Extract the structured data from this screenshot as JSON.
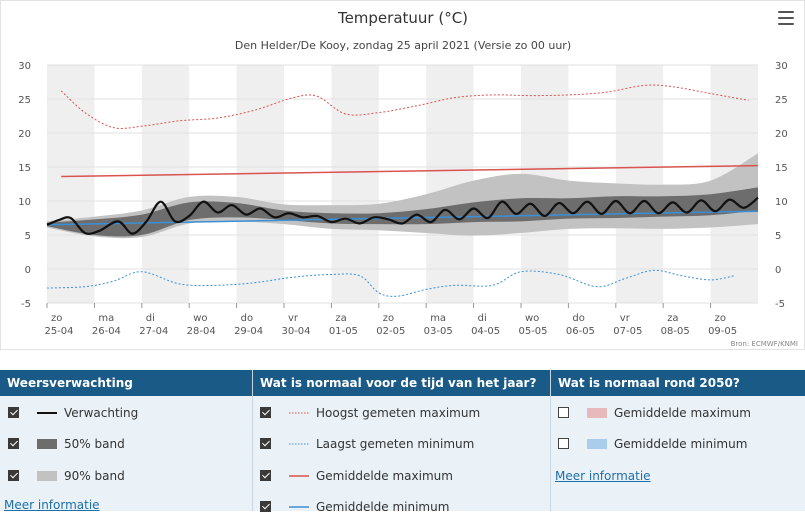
{
  "chart_data": {
    "type": "line",
    "title": "Temperatuur (°C)",
    "subtitle": "Den Helder/De Kooy, zondag 25 april 2021 (Versie zo 00 uur)",
    "source": "Bron: ECMWF/KNMI",
    "ylim": [
      -5,
      30
    ],
    "yticks": [
      "30",
      "25",
      "20",
      "15",
      "10",
      "5",
      "0",
      "-5"
    ],
    "ytick_values": [
      30,
      25,
      20,
      15,
      10,
      5,
      0,
      -5
    ],
    "xlim": [
      0,
      15
    ],
    "categories": [
      {
        "day": "zo",
        "date": "25-04"
      },
      {
        "day": "ma",
        "date": "26-04"
      },
      {
        "day": "di",
        "date": "27-04"
      },
      {
        "day": "wo",
        "date": "28-04"
      },
      {
        "day": "do",
        "date": "29-04"
      },
      {
        "day": "vr",
        "date": "30-04"
      },
      {
        "day": "za",
        "date": "01-05"
      },
      {
        "day": "zo",
        "date": "02-05"
      },
      {
        "day": "ma",
        "date": "03-05"
      },
      {
        "day": "di",
        "date": "04-05"
      },
      {
        "day": "wo",
        "date": "05-05"
      },
      {
        "day": "do",
        "date": "06-05"
      },
      {
        "day": "vr",
        "date": "07-05"
      },
      {
        "day": "za",
        "date": "08-05"
      },
      {
        "day": "zo",
        "date": "09-05"
      }
    ],
    "series": [
      {
        "name": "Hoogst gemeten maximum",
        "style": "dotted",
        "color": "#d9534f",
        "x": [
          0.3,
          0.8,
          1.4,
          2.0,
          2.8,
          3.6,
          4.4,
          5.2,
          5.7,
          6.3,
          7.0,
          7.8,
          8.6,
          9.4,
          10.2,
          11.0,
          11.8,
          12.6,
          13.2,
          14.0,
          14.8
        ],
        "y": [
          26.2,
          23.0,
          20.8,
          21.0,
          21.8,
          22.2,
          23.4,
          25.2,
          25.4,
          22.8,
          23.0,
          24.0,
          25.2,
          25.6,
          25.5,
          25.6,
          26.0,
          27.0,
          26.8,
          25.8,
          24.8
        ]
      },
      {
        "name": "Laagst gemeten minimum",
        "style": "dotted",
        "color": "#3a8fd6",
        "x": [
          0.0,
          0.8,
          1.4,
          2.0,
          2.8,
          3.6,
          4.4,
          5.2,
          6.0,
          6.6,
          7.0,
          7.4,
          8.0,
          8.6,
          9.4,
          10.0,
          10.8,
          11.6,
          12.2,
          12.8,
          13.4,
          14.0,
          14.5
        ],
        "y": [
          -2.8,
          -2.6,
          -1.8,
          -0.4,
          -2.2,
          -2.4,
          -2.0,
          -1.2,
          -0.8,
          -1.0,
          -3.5,
          -4.0,
          -3.0,
          -2.4,
          -2.4,
          -0.4,
          -0.8,
          -2.6,
          -1.4,
          -0.2,
          -1.0,
          -1.6,
          -1.0
        ]
      },
      {
        "name": "Gemiddelde maximum",
        "style": "solid",
        "color": "#d9534f",
        "x": [
          0.3,
          15.0
        ],
        "y": [
          13.6,
          15.2
        ]
      },
      {
        "name": "Gemiddelde minimum",
        "style": "solid",
        "color": "#3a8fd6",
        "x": [
          0.0,
          15.0
        ],
        "y": [
          6.5,
          8.5
        ]
      },
      {
        "name": "Verwachting",
        "style": "solid-bold",
        "color": "#111111",
        "x": [
          0.0,
          0.25,
          0.5,
          0.8,
          1.1,
          1.5,
          1.8,
          2.1,
          2.4,
          2.7,
          3.0,
          3.3,
          3.6,
          3.9,
          4.2,
          4.5,
          4.8,
          5.1,
          5.4,
          5.7,
          6.0,
          6.3,
          6.6,
          6.9,
          7.2,
          7.5,
          7.8,
          8.1,
          8.4,
          8.7,
          9.0,
          9.3,
          9.6,
          9.9,
          10.2,
          10.5,
          10.8,
          11.1,
          11.4,
          11.7,
          12.0,
          12.3,
          12.6,
          12.9,
          13.2,
          13.5,
          13.8,
          14.1,
          14.4,
          14.7,
          15.0
        ],
        "y": [
          6.5,
          7.2,
          7.5,
          5.3,
          5.6,
          7.0,
          5.2,
          7.0,
          9.9,
          7.0,
          7.8,
          9.9,
          8.3,
          9.4,
          8.0,
          8.9,
          7.6,
          8.2,
          7.6,
          7.8,
          6.9,
          7.4,
          6.7,
          7.6,
          7.3,
          6.7,
          8.0,
          6.9,
          8.7,
          7.3,
          8.9,
          7.5,
          9.9,
          8.1,
          9.6,
          7.8,
          9.7,
          8.2,
          9.9,
          8.1,
          10.0,
          8.2,
          10.0,
          8.2,
          9.8,
          8.3,
          10.1,
          8.5,
          10.2,
          9.0,
          10.5
        ]
      },
      {
        "name": "50% band",
        "type": "band",
        "color": "#6d6d6d",
        "x": [
          0.0,
          1.0,
          2.0,
          3.0,
          4.0,
          5.0,
          6.0,
          7.0,
          8.0,
          9.0,
          10.0,
          11.0,
          12.0,
          13.0,
          14.0,
          15.0
        ],
        "lower": [
          6.3,
          5.0,
          5.0,
          7.2,
          7.6,
          7.2,
          6.7,
          6.6,
          6.6,
          6.9,
          7.0,
          7.4,
          7.5,
          7.7,
          7.9,
          8.6
        ],
        "upper": [
          6.8,
          7.3,
          8.0,
          9.8,
          9.7,
          8.6,
          8.2,
          8.2,
          8.8,
          9.8,
          10.4,
          10.4,
          10.7,
          10.7,
          11.0,
          12.0
        ]
      },
      {
        "name": "90% band",
        "type": "band",
        "color": "#c2c2c2",
        "x": [
          0.0,
          1.0,
          2.0,
          3.0,
          4.0,
          5.0,
          6.0,
          7.0,
          8.0,
          9.0,
          10.0,
          11.0,
          12.0,
          13.0,
          14.0,
          15.0
        ],
        "lower": [
          6.1,
          4.8,
          4.7,
          6.7,
          7.0,
          6.6,
          5.9,
          5.7,
          5.3,
          4.9,
          5.3,
          5.9,
          6.0,
          5.9,
          6.1,
          6.6
        ],
        "upper": [
          7.0,
          7.7,
          8.6,
          10.6,
          10.6,
          9.5,
          9.4,
          9.6,
          11.0,
          13.0,
          14.0,
          13.0,
          12.6,
          12.4,
          13.0,
          17.0
        ]
      }
    ]
  },
  "legend": {
    "col1": {
      "header": "Weersverwachting",
      "items": [
        {
          "label": "Verwachting",
          "checked": true,
          "symbol": "bold-line"
        },
        {
          "label": "50% band",
          "checked": true,
          "symbol": "band-dark"
        },
        {
          "label": "90% band",
          "checked": true,
          "symbol": "band-light"
        }
      ],
      "more": "Meer informatie"
    },
    "col2": {
      "header": "Wat is normaal voor de tijd van het jaar?",
      "items": [
        {
          "label": "Hoogst gemeten maximum",
          "checked": true,
          "symbol": "red-dotted"
        },
        {
          "label": "Laagst gemeten minimum",
          "checked": true,
          "symbol": "blue-dotted"
        },
        {
          "label": "Gemiddelde maximum",
          "checked": true,
          "symbol": "red-line"
        },
        {
          "label": "Gemiddelde minimum",
          "checked": true,
          "symbol": "blue-line"
        }
      ]
    },
    "col3": {
      "header": "Wat is normaal rond 2050?",
      "items": [
        {
          "label": "Gemiddelde maximum",
          "checked": false,
          "symbol": "pink-box"
        },
        {
          "label": "Gemiddelde minimum",
          "checked": false,
          "symbol": "lightblue-box"
        }
      ],
      "more": "Meer informatie"
    }
  },
  "colors": {
    "header_bg": "#1a5a86",
    "legend_bg": "#eaf2f8",
    "link": "#1f6fa8",
    "stripe": "#efefef"
  },
  "icons": {
    "menu": "hamburger-menu-icon"
  }
}
